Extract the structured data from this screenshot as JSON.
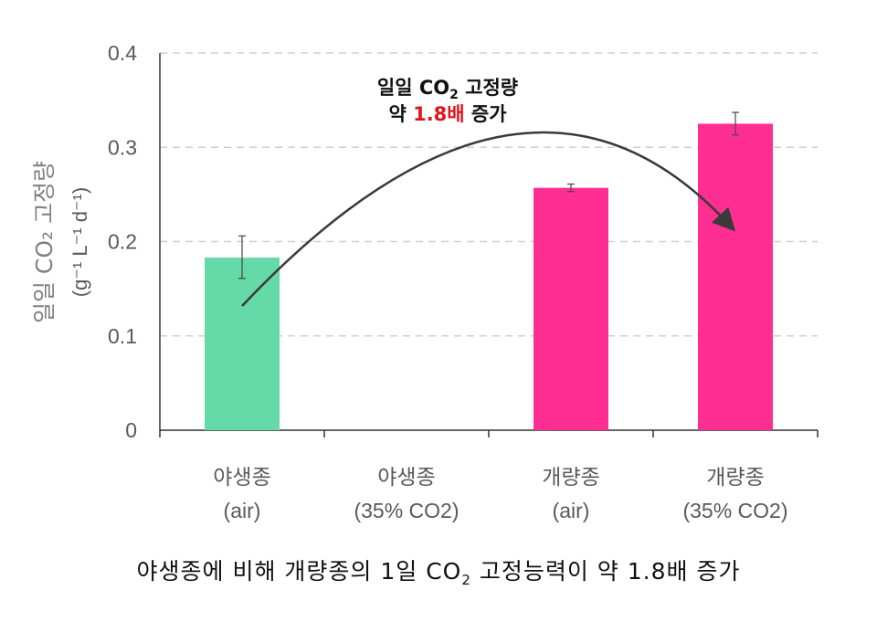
{
  "chart_data": {
    "type": "bar",
    "categories": [
      [
        "야생종",
        "(air)"
      ],
      [
        "야생종",
        "(35% CO2)"
      ],
      [
        "개량종",
        "(air)"
      ],
      [
        "개량종",
        "(35% CO2)"
      ]
    ],
    "values": [
      0.183,
      0,
      0.257,
      0.325
    ],
    "errors": [
      [
        0.161,
        0.206
      ],
      null,
      [
        0.253,
        0.261
      ],
      [
        0.313,
        0.337
      ]
    ],
    "colors": [
      "#66d9a8",
      "#66d9a8",
      "#ff2e93",
      "#ff2e93"
    ],
    "ylabel_line1": "일일 CO₂ 고정량",
    "ylabel_line2": "(g⁻¹ L⁻¹ d⁻¹)",
    "ylim": [
      0,
      0.4
    ],
    "yticks": [
      0,
      0.1,
      0.2,
      0.3,
      0.4
    ],
    "ytick_labels": [
      "0",
      "0.1",
      "0.2",
      "0.3",
      "0.4"
    ],
    "grid": true,
    "annotation": {
      "line1_prefix": "일일 CO",
      "line1_sub": "2",
      "line1_suffix": " 고정량",
      "line2_prefix": "약 ",
      "line2_highlight": "1.8배",
      "line2_suffix": " 증가",
      "highlight_color": "#e0141e"
    }
  },
  "caption": {
    "prefix": "야생종에 비해 개량종의 1일 CO",
    "sub": "2",
    "suffix": " 고정능력이 약 1.8배 증가"
  }
}
